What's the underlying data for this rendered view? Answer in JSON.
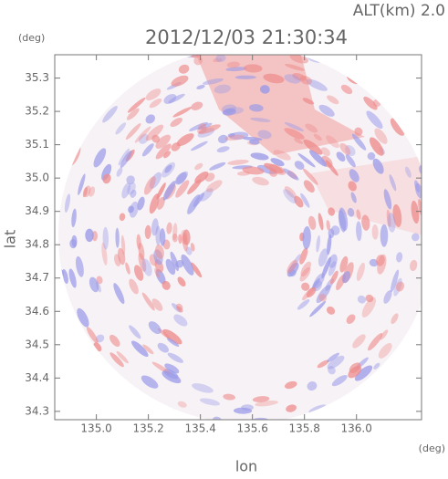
{
  "chart_data": {
    "type": "radar-image",
    "title": "2012/12/03 21:30:34",
    "annotation": "ALT(km) 2.0",
    "x_label": "lon",
    "y_label": "lat",
    "x_unit": "(deg)",
    "y_unit": "(deg)",
    "xlim": [
      134.84,
      136.25
    ],
    "ylim": [
      34.275,
      35.37
    ],
    "xticks": [
      {
        "value": 135,
        "label": "135.0"
      },
      135.2,
      135.4,
      135.6,
      135.8,
      {
        "value": 136,
        "label": "136.0"
      }
    ],
    "yticks": [
      34.3,
      34.4,
      34.5,
      34.6,
      34.7,
      34.8,
      34.9,
      {
        "value": 35,
        "label": "35.0"
      },
      35.1,
      35.2,
      35.3
    ]
  }
}
